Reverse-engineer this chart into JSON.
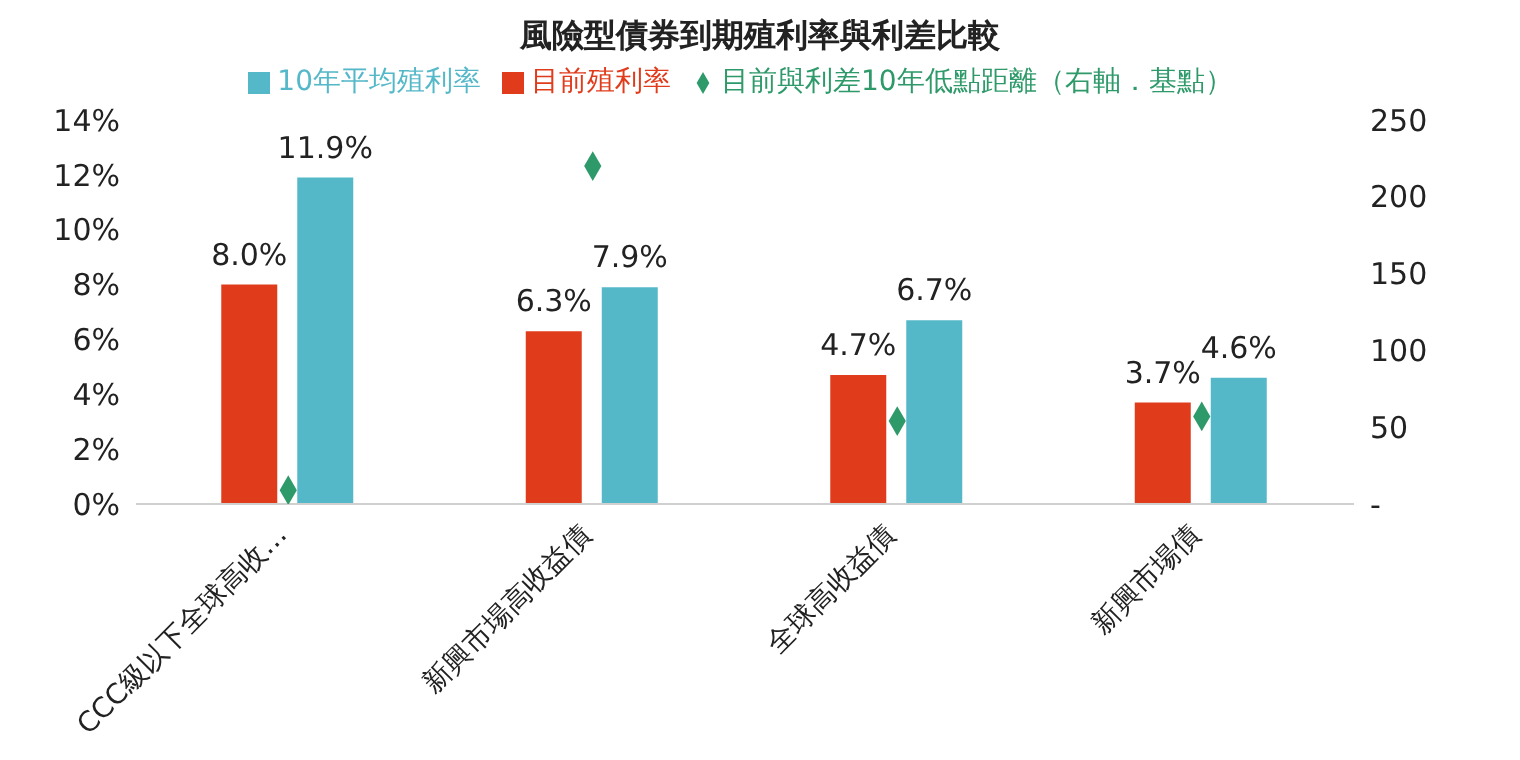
{
  "chart_data": {
    "type": "bar",
    "title": "風險型債券到期殖利率與利差比較",
    "categories": [
      "CCC級以下全球高收…",
      "新興市場高收益債",
      "全球高收益債",
      "新興市場債"
    ],
    "series": [
      {
        "name": "目前殖利率",
        "color": "#e03c1c",
        "values": [
          8.0,
          6.3,
          4.7,
          3.7
        ],
        "value_labels": [
          "8.0%",
          "6.3%",
          "4.7%",
          "3.7%"
        ]
      },
      {
        "name": "10年平均殖利率",
        "color": "#55b8c8",
        "values": [
          11.9,
          7.9,
          6.7,
          4.6
        ],
        "value_labels": [
          "11.9%",
          "7.9%",
          "6.7%",
          "4.6%"
        ]
      },
      {
        "name": "目前與利差10年低點距離（右軸．基點）",
        "type": "scatter",
        "axis": "y2",
        "color": "#2e9a6a",
        "values": [
          9,
          220,
          54,
          57
        ]
      }
    ],
    "ylim": [
      0,
      14
    ],
    "yticks": [
      {
        "value": 0,
        "label": "0%"
      },
      {
        "value": 2,
        "label": "2%"
      },
      {
        "value": 4,
        "label": "4%"
      },
      {
        "value": 6,
        "label": "6%"
      },
      {
        "value": 8,
        "label": "8%"
      },
      {
        "value": 10,
        "label": "10%"
      },
      {
        "value": 12,
        "label": "12%"
      },
      {
        "value": 14,
        "label": "14%"
      }
    ],
    "y2lim": [
      0,
      250
    ],
    "y2ticks": [
      {
        "value": 0,
        "label": "-"
      },
      50,
      100,
      150,
      200,
      250
    ],
    "marker": "diamond",
    "legend": "top",
    "grid": false
  }
}
